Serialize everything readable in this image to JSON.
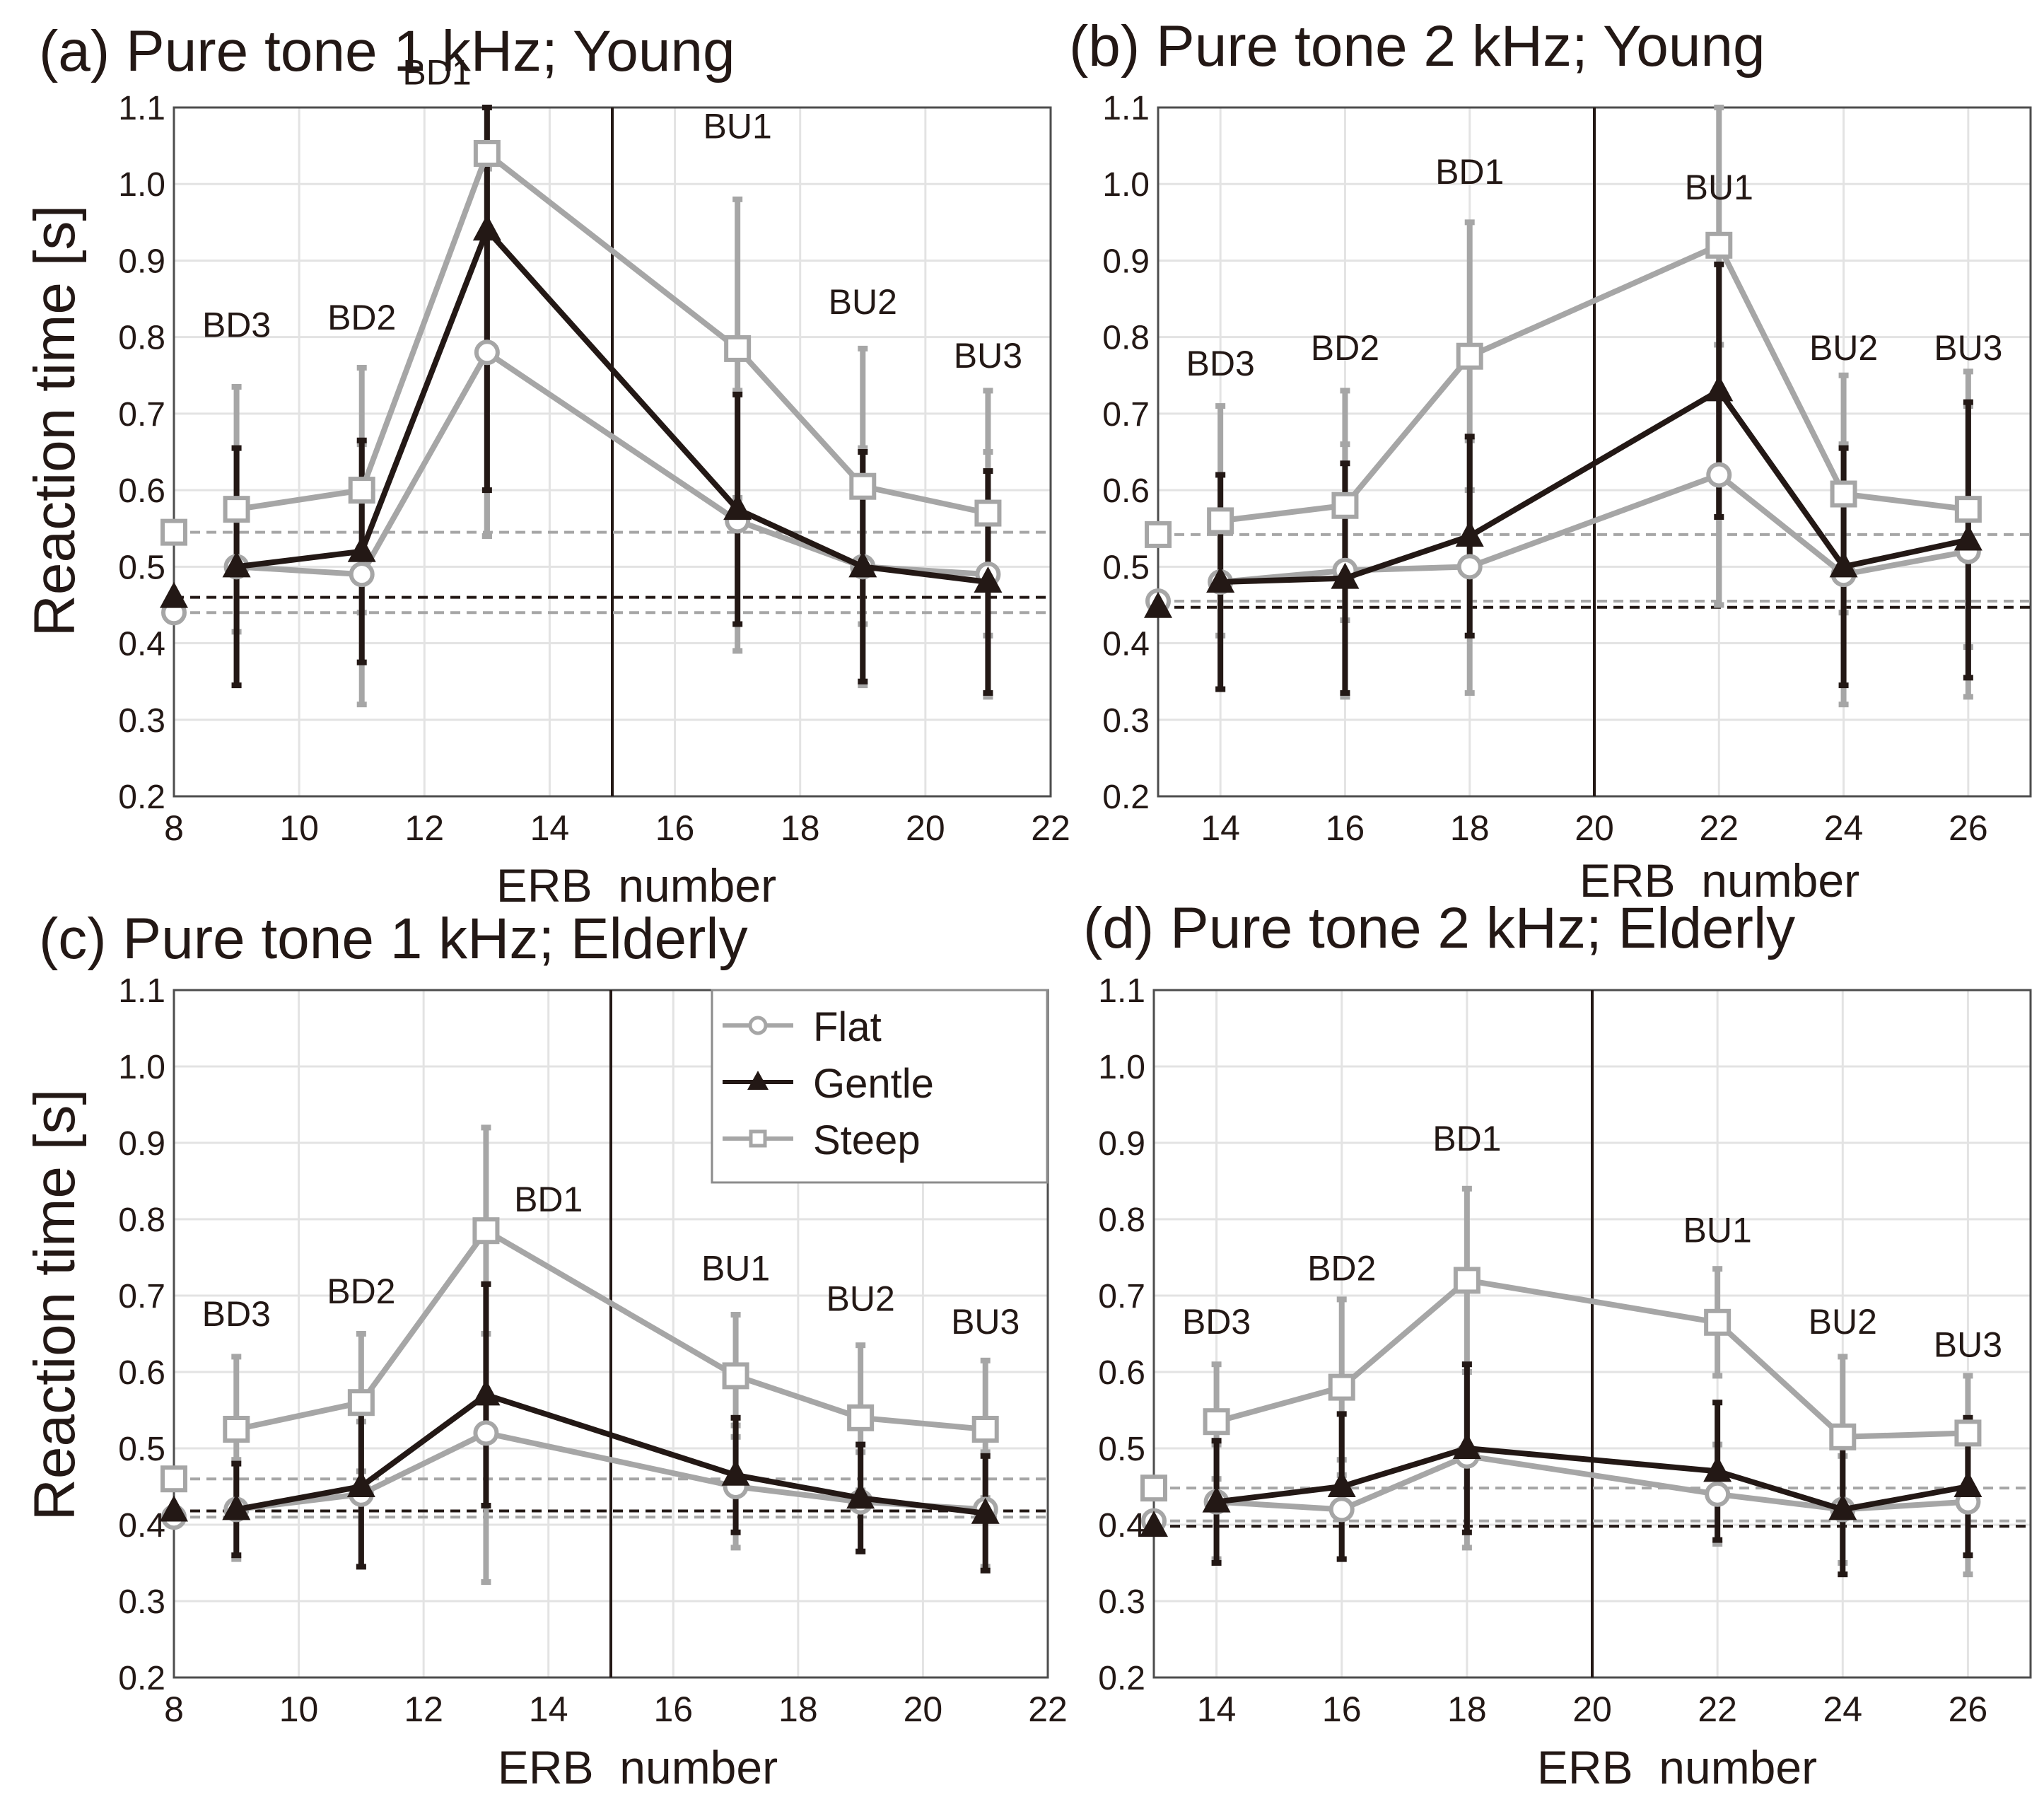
{
  "figure": {
    "ylabel": "Reaction time [s]",
    "xlabel": "ERB  number",
    "legend": [
      {
        "name": "Flat",
        "marker": "circle",
        "color": "#a6a6a6"
      },
      {
        "name": "Gentle",
        "marker": "triangle",
        "color": "#231815"
      },
      {
        "name": "Steep",
        "marker": "square",
        "color": "#a6a6a6"
      }
    ],
    "colors": {
      "flat": "#a6a6a6",
      "gentle": "#231815",
      "steep": "#a6a6a6",
      "grid": "#e3e3e3",
      "axis": "#4d4d4d"
    }
  },
  "chart_data": [
    {
      "id": "a",
      "type": "line",
      "title": "(a) Pure tone 1 kHz; Young",
      "xlabel": "ERB  number",
      "ylabel": "Reaction time [s]",
      "xlim": [
        8,
        22
      ],
      "ylim": [
        0.2,
        1.1
      ],
      "xticks": [
        8,
        10,
        12,
        14,
        16,
        18,
        20,
        22
      ],
      "yticks": [
        0.2,
        0.3,
        0.4,
        0.5,
        0.6,
        0.7,
        0.8,
        0.9,
        1.0,
        1.1
      ],
      "divider_x": 15,
      "grid": true,
      "x": [
        9,
        11,
        13,
        17,
        19,
        21
      ],
      "band_labels": [
        {
          "text": "BD3",
          "x": 9,
          "y": 0.8
        },
        {
          "text": "BD2",
          "x": 11,
          "y": 0.81
        },
        {
          "text": "BD1",
          "x": 12.2,
          "y": 1.13
        },
        {
          "text": "BU1",
          "x": 17,
          "y": 1.06
        },
        {
          "text": "BU2",
          "x": 19,
          "y": 0.83
        },
        {
          "text": "BU3",
          "x": 21,
          "y": 0.76
        }
      ],
      "series": [
        {
          "name": "Flat",
          "values": [
            0.5,
            0.49,
            0.78,
            0.56,
            0.5,
            0.49
          ],
          "err": [
            0.155,
            0.17,
            0.24,
            0.17,
            0.155,
            0.16
          ],
          "reference": 0.44
        },
        {
          "name": "Gentle",
          "values": [
            0.5,
            0.52,
            0.94,
            0.575,
            0.5,
            0.48
          ],
          "err": [
            0.155,
            0.145,
            0.34,
            0.15,
            0.15,
            0.145
          ],
          "reference": 0.46
        },
        {
          "name": "Steep",
          "values": [
            0.575,
            0.6,
            1.04,
            0.785,
            0.605,
            0.57
          ],
          "err": [
            0.16,
            0.16,
            0.5,
            0.195,
            0.18,
            0.16
          ],
          "reference": 0.545
        }
      ]
    },
    {
      "id": "b",
      "type": "line",
      "title": "(b) Pure tone 2 kHz; Young",
      "xlabel": "ERB  number",
      "ylabel": "",
      "xlim": [
        13,
        27
      ],
      "ylim": [
        0.2,
        1.1
      ],
      "xticks": [
        14,
        16,
        18,
        20,
        22,
        24,
        26
      ],
      "yticks": [
        0.2,
        0.3,
        0.4,
        0.5,
        0.6,
        0.7,
        0.8,
        0.9,
        1.0,
        1.1
      ],
      "divider_x": 20,
      "grid": true,
      "x": [
        14,
        16,
        18,
        22,
        24,
        26
      ],
      "band_labels": [
        {
          "text": "BD3",
          "x": 14,
          "y": 0.75
        },
        {
          "text": "BD2",
          "x": 16,
          "y": 0.77
        },
        {
          "text": "BD1",
          "x": 18,
          "y": 1.0
        },
        {
          "text": "BU1",
          "x": 22,
          "y": 0.98
        },
        {
          "text": "BU2",
          "x": 24,
          "y": 0.77
        },
        {
          "text": "BU3",
          "x": 26,
          "y": 0.77
        }
      ],
      "series": [
        {
          "name": "Flat",
          "values": [
            0.48,
            0.495,
            0.5,
            0.62,
            0.49,
            0.52
          ],
          "err": [
            0.14,
            0.165,
            0.165,
            0.17,
            0.17,
            0.19
          ],
          "reference": 0.455
        },
        {
          "name": "Gentle",
          "values": [
            0.48,
            0.485,
            0.54,
            0.73,
            0.5,
            0.535
          ],
          "err": [
            0.14,
            0.15,
            0.13,
            0.165,
            0.155,
            0.18
          ],
          "reference": 0.447
        },
        {
          "name": "Steep",
          "values": [
            0.56,
            0.58,
            0.775,
            0.92,
            0.595,
            0.575
          ],
          "err": [
            0.15,
            0.15,
            0.175,
            0.47,
            0.155,
            0.18
          ],
          "reference": 0.542
        }
      ]
    },
    {
      "id": "c",
      "type": "line",
      "title": "(c) Pure tone 1 kHz; Elderly",
      "xlabel": "ERB  number",
      "ylabel": "Reaction time [s]",
      "xlim": [
        8,
        22
      ],
      "ylim": [
        0.2,
        1.1
      ],
      "xticks": [
        8,
        10,
        12,
        14,
        16,
        18,
        20,
        22
      ],
      "yticks": [
        0.2,
        0.3,
        0.4,
        0.5,
        0.6,
        0.7,
        0.8,
        0.9,
        1.0,
        1.1
      ],
      "divider_x": 15,
      "grid": true,
      "x": [
        9,
        11,
        13,
        17,
        19,
        21
      ],
      "band_labels": [
        {
          "text": "BD3",
          "x": 9,
          "y": 0.66
        },
        {
          "text": "BD2",
          "x": 11,
          "y": 0.69
        },
        {
          "text": "BD1",
          "x": 14,
          "y": 0.81
        },
        {
          "text": "BU1",
          "x": 17,
          "y": 0.72
        },
        {
          "text": "BU2",
          "x": 19,
          "y": 0.68
        },
        {
          "text": "BU3",
          "x": 21,
          "y": 0.65
        }
      ],
      "series": [
        {
          "name": "Flat",
          "values": [
            0.42,
            0.44,
            0.52,
            0.45,
            0.43,
            0.42
          ],
          "err": [
            0.065,
            0.095,
            0.195,
            0.08,
            0.065,
            0.075
          ],
          "reference": 0.41
        },
        {
          "name": "Gentle",
          "values": [
            0.42,
            0.45,
            0.57,
            0.465,
            0.435,
            0.415
          ],
          "err": [
            0.06,
            0.105,
            0.145,
            0.075,
            0.07,
            0.075
          ],
          "reference": 0.418
        },
        {
          "name": "Steep",
          "values": [
            0.525,
            0.56,
            0.785,
            0.595,
            0.54,
            0.525
          ],
          "err": [
            0.095,
            0.09,
            0.135,
            0.08,
            0.095,
            0.09
          ],
          "reference": 0.46
        }
      ]
    },
    {
      "id": "d",
      "type": "line",
      "title": "(d) Pure tone 2 kHz; Elderly",
      "xlabel": "ERB  number",
      "ylabel": "",
      "xlim": [
        13,
        27
      ],
      "ylim": [
        0.2,
        1.1
      ],
      "xticks": [
        14,
        16,
        18,
        20,
        22,
        24,
        26
      ],
      "yticks": [
        0.2,
        0.3,
        0.4,
        0.5,
        0.6,
        0.7,
        0.8,
        0.9,
        1.0,
        1.1
      ],
      "divider_x": 20,
      "grid": true,
      "x": [
        14,
        16,
        18,
        22,
        24,
        26
      ],
      "band_labels": [
        {
          "text": "BD3",
          "x": 14,
          "y": 0.65
        },
        {
          "text": "BD2",
          "x": 16,
          "y": 0.72
        },
        {
          "text": "BD1",
          "x": 18,
          "y": 0.89
        },
        {
          "text": "BU1",
          "x": 22,
          "y": 0.77
        },
        {
          "text": "BU2",
          "x": 24,
          "y": 0.65
        },
        {
          "text": "BU3",
          "x": 26,
          "y": 0.62
        }
      ],
      "series": [
        {
          "name": "Flat",
          "values": [
            0.43,
            0.42,
            0.49,
            0.44,
            0.42,
            0.43
          ],
          "err": [
            0.075,
            0.065,
            0.12,
            0.065,
            0.07,
            0.095
          ],
          "reference": 0.405
        },
        {
          "name": "Gentle",
          "values": [
            0.43,
            0.45,
            0.5,
            0.47,
            0.42,
            0.45
          ],
          "err": [
            0.08,
            0.095,
            0.11,
            0.09,
            0.085,
            0.09
          ],
          "reference": 0.398
        },
        {
          "name": "Steep",
          "values": [
            0.535,
            0.58,
            0.72,
            0.665,
            0.515,
            0.52
          ],
          "err": [
            0.075,
            0.115,
            0.12,
            0.07,
            0.105,
            0.075
          ],
          "reference": 0.448
        }
      ]
    }
  ]
}
